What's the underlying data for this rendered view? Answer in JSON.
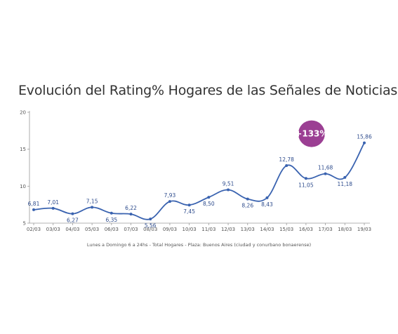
{
  "chart_data": {
    "type": "line",
    "title": "Evolución del Rating% Hogares de las Señales de Noticias",
    "subtitle": "Lunes a Domingo 6 a 24hs - Total Hogares - Plaza: Buenos Aires (ciudad y conurbano bonaerense)",
    "categories": [
      "02/03",
      "03/03",
      "04/03",
      "05/03",
      "06/03",
      "07/03",
      "08/03",
      "09/03",
      "10/03",
      "11/03",
      "12/03",
      "13/03",
      "14/03",
      "15/03",
      "16/03",
      "17/03",
      "18/03",
      "19/03"
    ],
    "series": [
      {
        "values": [
          6.81,
          7.01,
          6.27,
          7.15,
          6.35,
          6.22,
          5.56,
          7.93,
          7.45,
          8.5,
          9.51,
          8.26,
          8.43,
          12.78,
          11.05,
          11.68,
          11.18,
          15.86
        ],
        "labels": [
          "6,81",
          "7,01",
          "6,27",
          "7,15",
          "6,35",
          "6,22",
          "5,56",
          "7,93",
          "7,45",
          "8,50",
          "9,51",
          "8,26",
          "8,43",
          "12,78",
          "11,05",
          "11,68",
          "11,18",
          "15,86"
        ]
      }
    ],
    "label_positions": [
      "above",
      "above",
      "below",
      "above",
      "below",
      "above",
      "below",
      "above",
      "below",
      "below",
      "above",
      "below",
      "below",
      "above",
      "below",
      "above",
      "below",
      "above"
    ],
    "yticks": [
      5,
      10,
      15,
      20
    ],
    "ylim": [
      5,
      20
    ],
    "grid": false,
    "line_color": "#3a63b0",
    "label_color": "#2d4b8c",
    "badge": {
      "text": "+133%",
      "color": "#9b3f93"
    }
  }
}
